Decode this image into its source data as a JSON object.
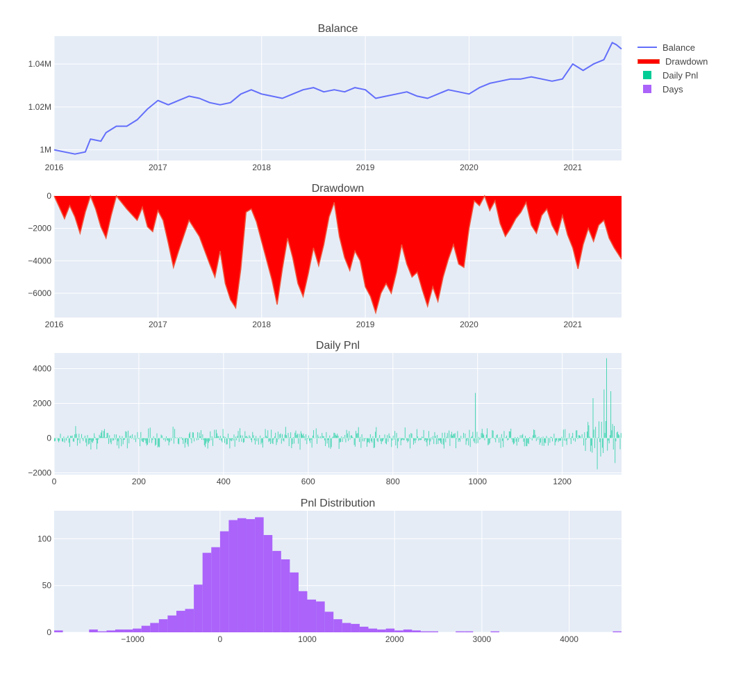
{
  "legend": {
    "items": [
      {
        "label": "Balance",
        "color": "#636efa"
      },
      {
        "label": "Drawdown",
        "color": "#ff0000"
      },
      {
        "label": "Daily Pnl",
        "color": "#00cc96"
      },
      {
        "label": "Days",
        "color": "#ab63fa"
      }
    ]
  },
  "chart_data": [
    {
      "type": "line",
      "title": "Balance",
      "series_name": "Balance",
      "color": "#636efa",
      "xlim": [
        2016.0,
        2021.47
      ],
      "xticks": [
        2016,
        2017,
        2018,
        2019,
        2020,
        2021
      ],
      "xtick_labels": [
        "2016",
        "2017",
        "2018",
        "2019",
        "2020",
        "2021"
      ],
      "ylim": [
        995000,
        1053000
      ],
      "yticks": [
        1000000,
        1020000,
        1040000
      ],
      "ytick_labels": [
        "1M",
        "1.02M",
        "1.04M"
      ],
      "x": [
        2016.0,
        2016.1,
        2016.2,
        2016.3,
        2016.35,
        2016.45,
        2016.5,
        2016.6,
        2016.7,
        2016.8,
        2016.9,
        2017.0,
        2017.1,
        2017.2,
        2017.3,
        2017.4,
        2017.5,
        2017.6,
        2017.7,
        2017.8,
        2017.9,
        2018.0,
        2018.1,
        2018.2,
        2018.3,
        2018.4,
        2018.5,
        2018.6,
        2018.7,
        2018.8,
        2018.9,
        2019.0,
        2019.1,
        2019.2,
        2019.3,
        2019.4,
        2019.5,
        2019.6,
        2019.7,
        2019.8,
        2019.9,
        2020.0,
        2020.1,
        2020.2,
        2020.3,
        2020.4,
        2020.5,
        2020.6,
        2020.7,
        2020.8,
        2020.9,
        2021.0,
        2021.1,
        2021.2,
        2021.3,
        2021.38,
        2021.42,
        2021.47
      ],
      "y": [
        1000000,
        999000,
        998000,
        999000,
        1005000,
        1004000,
        1008000,
        1011000,
        1011000,
        1014000,
        1019000,
        1023000,
        1021000,
        1023000,
        1025000,
        1024000,
        1022000,
        1021000,
        1022000,
        1026000,
        1028000,
        1026000,
        1025000,
        1024000,
        1026000,
        1028000,
        1029000,
        1027000,
        1028000,
        1027000,
        1029000,
        1028000,
        1024000,
        1025000,
        1026000,
        1027000,
        1025000,
        1024000,
        1026000,
        1028000,
        1027000,
        1026000,
        1029000,
        1031000,
        1032000,
        1033000,
        1033000,
        1034000,
        1033000,
        1032000,
        1033000,
        1040000,
        1037000,
        1040000,
        1042000,
        1050000,
        1049000,
        1047000
      ]
    },
    {
      "type": "area",
      "title": "Drawdown",
      "series_name": "Drawdown",
      "color": "#ff0000",
      "line_color": "#ef553b",
      "xlim": [
        2016.0,
        2021.47
      ],
      "xticks": [
        2016,
        2017,
        2018,
        2019,
        2020,
        2021
      ],
      "xtick_labels": [
        "2016",
        "2017",
        "2018",
        "2019",
        "2020",
        "2021"
      ],
      "ylim": [
        -7500,
        0
      ],
      "yticks": [
        0,
        -2000,
        -4000,
        -6000
      ],
      "ytick_labels": [
        "0",
        "−2000",
        "−4000",
        "−6000"
      ],
      "x": [
        2016.0,
        2016.05,
        2016.1,
        2016.15,
        2016.2,
        2016.25,
        2016.3,
        2016.35,
        2016.4,
        2016.45,
        2016.5,
        2016.55,
        2016.6,
        2016.7,
        2016.8,
        2016.85,
        2016.9,
        2016.95,
        2017.0,
        2017.05,
        2017.1,
        2017.15,
        2017.2,
        2017.3,
        2017.4,
        2017.5,
        2017.55,
        2017.6,
        2017.65,
        2017.7,
        2017.75,
        2017.8,
        2017.85,
        2017.9,
        2017.95,
        2018.0,
        2018.05,
        2018.1,
        2018.15,
        2018.2,
        2018.25,
        2018.3,
        2018.35,
        2018.4,
        2018.45,
        2018.5,
        2018.55,
        2018.6,
        2018.65,
        2018.7,
        2018.75,
        2018.8,
        2018.85,
        2018.9,
        2018.95,
        2019.0,
        2019.05,
        2019.1,
        2019.15,
        2019.2,
        2019.25,
        2019.3,
        2019.35,
        2019.4,
        2019.45,
        2019.5,
        2019.55,
        2019.6,
        2019.65,
        2019.7,
        2019.75,
        2019.8,
        2019.85,
        2019.9,
        2019.95,
        2020.0,
        2020.05,
        2020.1,
        2020.15,
        2020.2,
        2020.25,
        2020.3,
        2020.35,
        2020.4,
        2020.45,
        2020.5,
        2020.55,
        2020.6,
        2020.65,
        2020.7,
        2020.75,
        2020.8,
        2020.85,
        2020.9,
        2020.95,
        2021.0,
        2021.05,
        2021.1,
        2021.15,
        2021.2,
        2021.25,
        2021.3,
        2021.35,
        2021.4,
        2021.45,
        2021.47
      ],
      "y": [
        0,
        -700,
        -1400,
        -600,
        -1300,
        -2300,
        -1000,
        0,
        -800,
        -1900,
        -2600,
        -1200,
        0,
        -800,
        -1500,
        -700,
        -1900,
        -2200,
        -900,
        -1500,
        -2900,
        -4400,
        -3400,
        -1500,
        -2500,
        -4200,
        -5000,
        -3400,
        -5400,
        -6400,
        -6900,
        -4500,
        -1000,
        -800,
        -1600,
        -2800,
        -4000,
        -5200,
        -6700,
        -4500,
        -2600,
        -3800,
        -5400,
        -6200,
        -4800,
        -3200,
        -4300,
        -3000,
        -1300,
        -400,
        -2500,
        -3800,
        -4600,
        -3400,
        -4000,
        -5600,
        -6200,
        -7200,
        -6000,
        -5400,
        -6000,
        -4700,
        -3000,
        -4200,
        -5000,
        -4700,
        -5800,
        -6800,
        -5600,
        -6500,
        -5000,
        -3900,
        -3000,
        -4200,
        -4400,
        -2000,
        -300,
        -600,
        0,
        -900,
        -300,
        -1700,
        -2500,
        -2000,
        -1400,
        -1000,
        -400,
        -1800,
        -2300,
        -1200,
        -800,
        -1800,
        -2400,
        -1200,
        -2400,
        -3200,
        -4500,
        -3000,
        -2000,
        -2800,
        -1800,
        -1500,
        -2600,
        -3200,
        -3700,
        -3900
      ]
    },
    {
      "type": "bar",
      "title": "Daily Pnl",
      "series_name": "Daily Pnl",
      "color": "#00cc96",
      "xlim": [
        0,
        1340
      ],
      "xticks": [
        0,
        200,
        400,
        600,
        800,
        1000,
        1200
      ],
      "xtick_labels": [
        "0",
        "200",
        "400",
        "600",
        "800",
        "1000",
        "1200"
      ],
      "ylim": [
        -2100,
        4900
      ],
      "yticks": [
        -2000,
        0,
        2000,
        4000
      ],
      "ytick_labels": [
        "−2000",
        "0",
        "2000",
        "4000"
      ],
      "n_days": 1340,
      "notable_values": [
        {
          "x": 995,
          "y": 2600
        },
        {
          "x": 1298,
          "y": 2800
        },
        {
          "x": 1305,
          "y": 4600
        },
        {
          "x": 1283,
          "y": -1800
        },
        {
          "x": 1272,
          "y": 2300
        },
        {
          "x": 1314,
          "y": 2700
        }
      ]
    },
    {
      "type": "bar",
      "title": "Pnl Distribution",
      "series_name": "Days",
      "color": "#ab63fa",
      "xlim": [
        -1900,
        4600
      ],
      "xticks": [
        -1000,
        0,
        1000,
        2000,
        3000,
        4000
      ],
      "xtick_labels": [
        "−1000",
        "0",
        "1000",
        "2000",
        "3000",
        "4000"
      ],
      "ylim": [
        0,
        130
      ],
      "yticks": [
        0,
        50,
        100
      ],
      "ytick_labels": [
        "0",
        "50",
        "100"
      ],
      "bin_width": 100,
      "bin_start": -1900,
      "values": [
        2,
        0,
        0,
        0,
        3,
        1,
        2,
        3,
        3,
        4,
        7,
        10,
        14,
        18,
        23,
        25,
        51,
        85,
        91,
        108,
        120,
        122,
        121,
        123,
        104,
        87,
        78,
        64,
        44,
        35,
        33,
        22,
        14,
        10,
        9,
        6,
        4,
        3,
        4,
        2,
        3,
        2,
        1,
        1,
        0,
        0,
        1,
        1,
        0,
        0,
        1,
        0,
        0,
        0,
        0,
        0,
        0,
        0,
        0,
        0,
        0,
        0,
        0,
        0,
        1
      ]
    }
  ]
}
